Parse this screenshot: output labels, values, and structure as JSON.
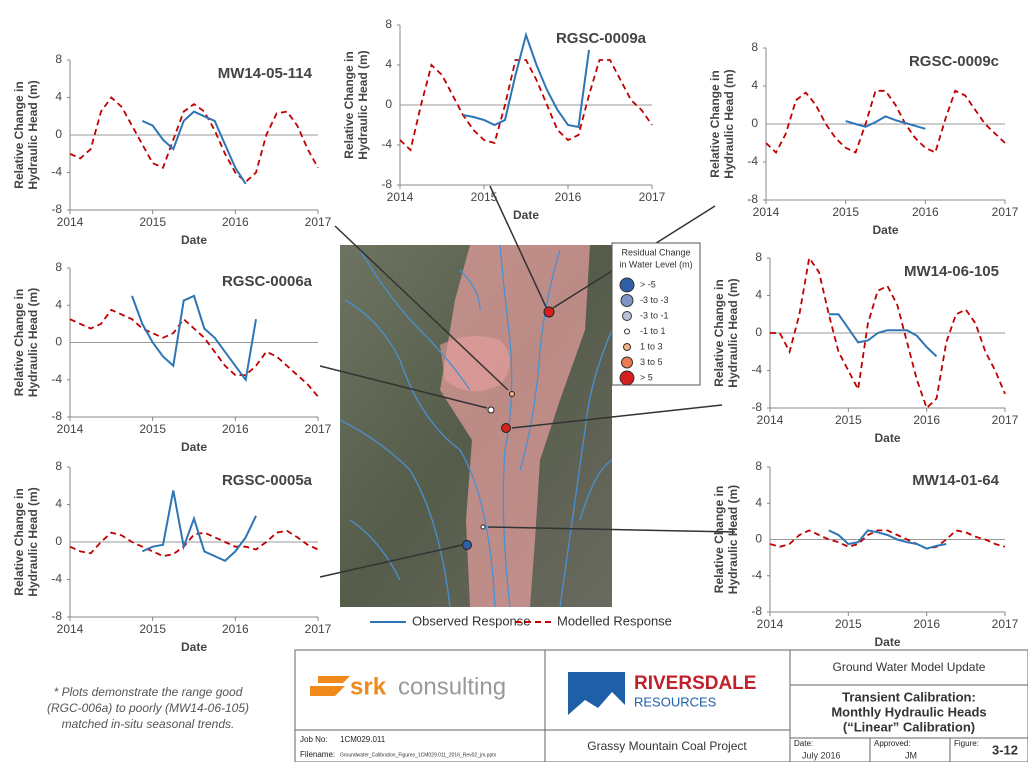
{
  "chart_data": [
    {
      "type": "line",
      "title": "MW14-05-114",
      "xlabel": "Date",
      "ylabel": [
        "Relative Change in",
        "Hydraulic Head (m)"
      ],
      "x": [
        2014,
        2014.125,
        2014.25,
        2014.375,
        2014.5,
        2014.625,
        2014.75,
        2014.875,
        2015,
        2015.125,
        2015.25,
        2015.375,
        2015.5,
        2015.625,
        2015.75,
        2015.875,
        2016,
        2016.125,
        2016.25,
        2016.375,
        2016.5,
        2016.625,
        2016.75,
        2016.875,
        2017
      ],
      "xlim": [
        2014,
        2017
      ],
      "ylim": [
        -8,
        8
      ],
      "xticks": [
        2014,
        2015,
        2016,
        2017
      ],
      "yticks": [
        -8,
        -4,
        0,
        4,
        8
      ],
      "series": [
        {
          "color": "#c00000",
          "values": [
            -2,
            -2.5,
            -1.5,
            2.5,
            4,
            3,
            1,
            -1,
            -3,
            -3.5,
            -0.5,
            2.5,
            3.3,
            2.5,
            0.5,
            -2,
            -4,
            -5,
            -4,
            0,
            2.3,
            2.5,
            1,
            -1.5,
            -3.5
          ]
        },
        {
          "color": "#2e75b6",
          "values": [
            null,
            null,
            null,
            null,
            null,
            null,
            null,
            1.5,
            1,
            -0.5,
            -1.5,
            1.5,
            2.5,
            2,
            1.5,
            -1,
            -3.5,
            -5.2,
            null,
            null,
            null,
            null,
            null,
            null,
            null
          ]
        }
      ]
    },
    {
      "type": "line",
      "title": "RGSC-0009a",
      "xlabel": "Date",
      "ylabel": [
        "Relative Change in",
        "Hydraulic Head (m)"
      ],
      "x": [
        2014,
        2014.125,
        2014.25,
        2014.375,
        2014.5,
        2014.625,
        2014.75,
        2014.875,
        2015,
        2015.125,
        2015.25,
        2015.375,
        2015.5,
        2015.625,
        2015.75,
        2015.875,
        2016,
        2016.125,
        2016.25,
        2016.375,
        2016.5,
        2016.625,
        2016.75,
        2016.875,
        2017
      ],
      "xlim": [
        2014,
        2017
      ],
      "ylim": [
        -8,
        8
      ],
      "xticks": [
        2014,
        2015,
        2016,
        2017
      ],
      "yticks": [
        -8,
        -4,
        0,
        4,
        8
      ],
      "series": [
        {
          "color": "#c00000",
          "values": [
            -3.5,
            -4.5,
            0,
            4,
            3,
            1,
            -1,
            -2.5,
            -3.5,
            -3.8,
            0,
            4.5,
            4.5,
            2.5,
            0,
            -2.5,
            -3.5,
            -3,
            1,
            4.5,
            4.5,
            2.5,
            0.5,
            -0.5,
            -2
          ]
        },
        {
          "color": "#2e75b6",
          "values": [
            null,
            null,
            null,
            null,
            null,
            null,
            -1,
            -1.2,
            -1.5,
            -2,
            -1.5,
            3,
            7,
            4,
            1.5,
            -0.5,
            -2,
            -2.2,
            5.5,
            null,
            null,
            null,
            null,
            null,
            null
          ]
        }
      ]
    },
    {
      "type": "line",
      "title": "RGSC-0009c",
      "xlabel": "Date",
      "ylabel": [
        "Relative Change in",
        "Hydraulic Head (m)"
      ],
      "x": [
        2014,
        2014.125,
        2014.25,
        2014.375,
        2014.5,
        2014.625,
        2014.75,
        2014.875,
        2015,
        2015.125,
        2015.25,
        2015.375,
        2015.5,
        2015.625,
        2015.75,
        2015.875,
        2016,
        2016.125,
        2016.25,
        2016.375,
        2016.5,
        2016.625,
        2016.75,
        2016.875,
        2017
      ],
      "xlim": [
        2014,
        2017
      ],
      "ylim": [
        -8,
        8
      ],
      "xticks": [
        2014,
        2015,
        2016,
        2017
      ],
      "yticks": [
        -8,
        -4,
        0,
        4,
        8
      ],
      "series": [
        {
          "color": "#c00000",
          "values": [
            -2,
            -3,
            -1,
            2.5,
            3.3,
            2,
            0,
            -1.5,
            -2.5,
            -3,
            0,
            3.5,
            3.5,
            2,
            0,
            -1.5,
            -2.5,
            -3,
            0.5,
            3.5,
            3,
            1.5,
            0,
            -1,
            -2
          ]
        },
        {
          "color": "#2e75b6",
          "values": [
            null,
            null,
            null,
            null,
            null,
            null,
            null,
            null,
            0.3,
            0,
            -0.3,
            0.2,
            0.8,
            0.4,
            0.1,
            -0.2,
            -0.5,
            null,
            null,
            null,
            null,
            null,
            null,
            null,
            null
          ]
        }
      ]
    },
    {
      "type": "line",
      "title": "RGSC-0006a",
      "xlabel": "Date",
      "ylabel": [
        "Relative Change in",
        "Hydraulic Head (m)"
      ],
      "x": [
        2014,
        2014.125,
        2014.25,
        2014.375,
        2014.5,
        2014.625,
        2014.75,
        2014.875,
        2015,
        2015.125,
        2015.25,
        2015.375,
        2015.5,
        2015.625,
        2015.75,
        2015.875,
        2016,
        2016.125,
        2016.25,
        2016.375,
        2016.5,
        2016.625,
        2016.75,
        2016.875,
        2017
      ],
      "xlim": [
        2014,
        2017
      ],
      "ylim": [
        -8,
        8
      ],
      "xticks": [
        2014,
        2015,
        2016,
        2017
      ],
      "yticks": [
        -8,
        -4,
        0,
        4,
        8
      ],
      "series": [
        {
          "color": "#c00000",
          "values": [
            2.5,
            2,
            1.5,
            2,
            3.5,
            3,
            2.5,
            1.5,
            1,
            0.5,
            1,
            2.5,
            1.5,
            0.5,
            -1,
            -2.5,
            -3.5,
            -3.5,
            -2.5,
            -1,
            -1.5,
            -2.5,
            -3.5,
            -4.5,
            -5.8
          ]
        },
        {
          "color": "#2e75b6",
          "values": [
            null,
            null,
            null,
            null,
            null,
            null,
            5,
            2,
            0,
            -1.5,
            -2.5,
            4.5,
            5,
            1.5,
            0.5,
            -1,
            -2.5,
            -4,
            2.5,
            null,
            null,
            null,
            null,
            null,
            null
          ]
        }
      ]
    },
    {
      "type": "line",
      "title": "MW14-06-105",
      "xlabel": "Date",
      "ylabel": [
        "Relative Change in",
        "Hydraulic Head (m)"
      ],
      "x": [
        2014,
        2014.125,
        2014.25,
        2014.375,
        2014.5,
        2014.625,
        2014.75,
        2014.875,
        2015,
        2015.125,
        2015.25,
        2015.375,
        2015.5,
        2015.625,
        2015.75,
        2015.875,
        2016,
        2016.125,
        2016.25,
        2016.375,
        2016.5,
        2016.625,
        2016.75,
        2016.875,
        2017
      ],
      "xlim": [
        2014,
        2017
      ],
      "ylim": [
        -8,
        8
      ],
      "xticks": [
        2014,
        2015,
        2016,
        2017
      ],
      "yticks": [
        -8,
        -4,
        0,
        4,
        8
      ],
      "series": [
        {
          "color": "#c00000",
          "values": [
            0,
            0,
            -2,
            2,
            8,
            6.5,
            2,
            -2,
            -4,
            -6,
            1,
            4.5,
            5,
            3,
            -1,
            -5,
            -8,
            -7,
            -1,
            2,
            2.5,
            1,
            -2,
            -4,
            -6.5
          ]
        },
        {
          "color": "#2e75b6",
          "values": [
            null,
            null,
            null,
            null,
            null,
            null,
            2,
            2,
            0.5,
            -1,
            -0.8,
            0,
            0.3,
            0.3,
            0.3,
            -0.3,
            -1.5,
            -2.5,
            null,
            null,
            null,
            null,
            null,
            null,
            null
          ]
        }
      ]
    },
    {
      "type": "line",
      "title": "RGSC-0005a",
      "xlabel": "Date",
      "ylabel": [
        "Relative Change in",
        "Hydraulic Head (m)"
      ],
      "x": [
        2014,
        2014.125,
        2014.25,
        2014.375,
        2014.5,
        2014.625,
        2014.75,
        2014.875,
        2015,
        2015.125,
        2015.25,
        2015.375,
        2015.5,
        2015.625,
        2015.75,
        2015.875,
        2016,
        2016.125,
        2016.25,
        2016.375,
        2016.5,
        2016.625,
        2016.75,
        2016.875,
        2017
      ],
      "xlim": [
        2014,
        2017
      ],
      "ylim": [
        -8,
        8
      ],
      "xticks": [
        2014,
        2015,
        2016,
        2017
      ],
      "yticks": [
        -8,
        -4,
        0,
        4,
        8
      ],
      "series": [
        {
          "color": "#c00000",
          "values": [
            -0.5,
            -1,
            -1.2,
            0,
            1,
            0.7,
            0,
            -0.5,
            -1,
            -1.5,
            -1.3,
            -0.5,
            0.8,
            1,
            0.5,
            0,
            -0.5,
            -0.5,
            -0.8,
            0,
            1,
            1.2,
            0.5,
            -0.3,
            -0.8
          ]
        },
        {
          "color": "#2e75b6",
          "values": [
            null,
            null,
            null,
            null,
            null,
            null,
            null,
            -1,
            -0.5,
            -0.3,
            5.5,
            -0.5,
            2.5,
            -1,
            -1.5,
            -2,
            -1,
            0.5,
            2.8,
            null,
            null,
            null,
            null,
            null,
            null
          ]
        }
      ]
    },
    {
      "type": "line",
      "title": "MW14-01-64",
      "xlabel": "Date",
      "ylabel": [
        "Relative Change in",
        "Hydraulic Head (m)"
      ],
      "x": [
        2014,
        2014.125,
        2014.25,
        2014.375,
        2014.5,
        2014.625,
        2014.75,
        2014.875,
        2015,
        2015.125,
        2015.25,
        2015.375,
        2015.5,
        2015.625,
        2015.75,
        2015.875,
        2016,
        2016.125,
        2016.25,
        2016.375,
        2016.5,
        2016.625,
        2016.75,
        2016.875,
        2017
      ],
      "xlim": [
        2014,
        2017
      ],
      "ylim": [
        -8,
        8
      ],
      "xticks": [
        2014,
        2015,
        2016,
        2017
      ],
      "yticks": [
        -8,
        -4,
        0,
        4,
        8
      ],
      "series": [
        {
          "color": "#c00000",
          "values": [
            -0.5,
            -0.8,
            -0.5,
            0.5,
            1,
            0.5,
            0,
            -0.3,
            -0.8,
            -0.5,
            0.5,
            1,
            1,
            0.5,
            0,
            -0.5,
            -1,
            -0.8,
            0,
            1,
            0.8,
            0.3,
            0,
            -0.5,
            -0.8
          ]
        },
        {
          "color": "#2e75b6",
          "values": [
            null,
            null,
            null,
            null,
            null,
            null,
            1,
            0.5,
            -0.5,
            -0.3,
            1,
            0.8,
            0.5,
            0,
            -0.3,
            -0.5,
            -1,
            -0.7,
            -0.5,
            null,
            null,
            null,
            null,
            null,
            null
          ]
        }
      ]
    }
  ],
  "legend": {
    "entries": [
      {
        "name": "Observed Response",
        "color": "#2e75b6"
      },
      {
        "name": "Modelled Response",
        "color": "#c00000"
      }
    ]
  },
  "map_legend": {
    "title": [
      "Residual Change",
      "in Water Level (m)"
    ],
    "items": [
      {
        "label": "> -5",
        "color": "#2e5fa8"
      },
      {
        "label": "-3 to -3",
        "color": "#7f96c4"
      },
      {
        "label": "-3 to -1",
        "color": "#b7c2d8"
      },
      {
        "label": "-1 to 1",
        "color": "#ffffff"
      },
      {
        "label": "1 to 3",
        "color": "#f4b183"
      },
      {
        "label": "3 to 5",
        "color": "#ee7b52"
      },
      {
        "label": "> 5",
        "color": "#d62020"
      }
    ]
  },
  "note": [
    "* Plots demonstrate the range good",
    "(RGC-006a) to poorly (MW14-06-105)",
    "matched in-situ seasonal trends."
  ],
  "title_block": {
    "srk": "srk",
    "consulting": "consulting",
    "riversdale": "RIVERSDALE",
    "resources": "RESOURCES",
    "job_label": "Job No:",
    "job": "1CM029.011",
    "file_label": "Filename:",
    "file": "Groundwater_Calibration_Figures_1CM029.011_2016_Rev02_jm.pptx",
    "project": "Grassy Mountain Coal Project",
    "header": "Ground Water Model Update",
    "title": [
      "Transient Calibration:",
      "Monthly Hydraulic Heads",
      "(“Linear” Calibration)"
    ],
    "date_label": "Date:",
    "date": "July 2016",
    "approved_label": "Approved:",
    "approved": "JM",
    "figure_label": "Figure:",
    "figure": "3-12"
  }
}
